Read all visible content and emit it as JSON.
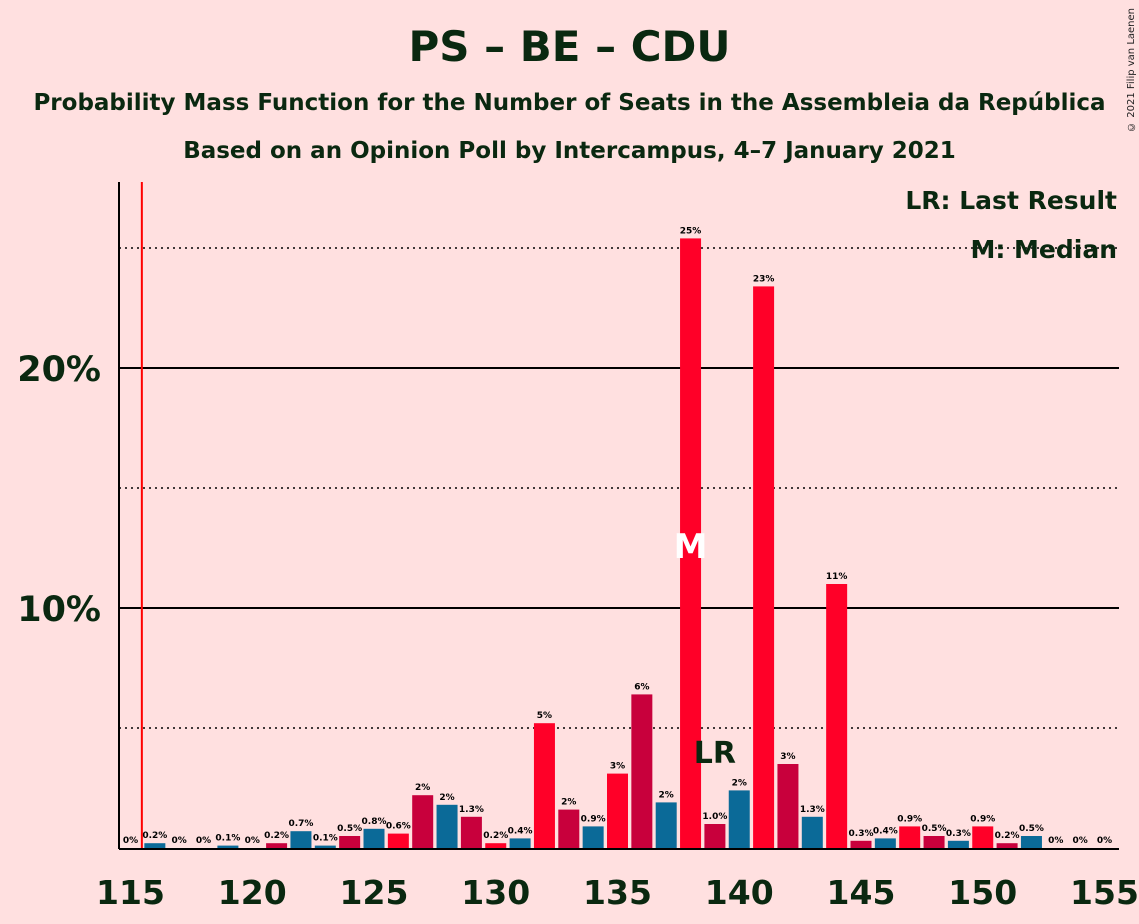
{
  "title": "PS – BE – CDU",
  "subtitle": "Probability Mass Function for the Number of Seats in the Assembleia da República",
  "subtitle2": "Based on an Opinion Poll by Intercampus, 4–7 January 2021",
  "copyright": "© 2021 Filip van Laenen",
  "legend": {
    "last_result": "LR: Last Result",
    "median": "M: Median"
  },
  "markers": {
    "median_label": "M",
    "median_seat": 138,
    "last_result_label": "LR",
    "last_result_seat": 139,
    "threshold_line_seat": 116
  },
  "colors": {
    "background": "#ffe0e0",
    "ps_red": "#ff0028",
    "crimson": "#c8003c",
    "blue": "#0b6a98",
    "threshold_line": "#ff0000",
    "text": "#0a2810"
  },
  "chart_data": {
    "type": "bar",
    "xlim": [
      115,
      155
    ],
    "ylim": [
      0,
      27.5
    ],
    "x_ticks": [
      "115",
      "120",
      "125",
      "130",
      "135",
      "140",
      "145",
      "150",
      "155"
    ],
    "y_ticks": [
      "10%",
      "20%"
    ],
    "major_gridlines": [
      10,
      20
    ],
    "minor_gridlines": [
      5,
      15,
      25
    ],
    "bars": [
      {
        "seats": 115,
        "value": 0.0,
        "label": "0%",
        "color": "#0b6a98"
      },
      {
        "seats": 116,
        "value": 0.2,
        "label": "0.2%",
        "color": "#0b6a98"
      },
      {
        "seats": 117,
        "value": 0.0,
        "label": "0%",
        "color": "#0b6a98"
      },
      {
        "seats": 118,
        "value": 0.0,
        "label": "0%",
        "color": "#0b6a98"
      },
      {
        "seats": 119,
        "value": 0.1,
        "label": "0.1%",
        "color": "#0b6a98"
      },
      {
        "seats": 120,
        "value": 0.0,
        "label": "0%",
        "color": "#0b6a98"
      },
      {
        "seats": 121,
        "value": 0.2,
        "label": "0.2%",
        "color": "#c8003c"
      },
      {
        "seats": 122,
        "value": 0.7,
        "label": "0.7%",
        "color": "#0b6a98"
      },
      {
        "seats": 123,
        "value": 0.1,
        "label": "0.1%",
        "color": "#0b6a98"
      },
      {
        "seats": 124,
        "value": 0.5,
        "label": "0.5%",
        "color": "#c8003c"
      },
      {
        "seats": 125,
        "value": 0.8,
        "label": "0.8%",
        "color": "#0b6a98"
      },
      {
        "seats": 126,
        "value": 0.6,
        "label": "0.6%",
        "color": "#ff0028"
      },
      {
        "seats": 127,
        "value": 2.2,
        "label": "2%",
        "color": "#c8003c"
      },
      {
        "seats": 128,
        "value": 1.8,
        "label": "2%",
        "color": "#0b6a98"
      },
      {
        "seats": 129,
        "value": 1.3,
        "label": "1.3%",
        "color": "#c8003c"
      },
      {
        "seats": 130,
        "value": 0.2,
        "label": "0.2%",
        "color": "#ff0028"
      },
      {
        "seats": 131,
        "value": 0.4,
        "label": "0.4%",
        "color": "#0b6a98"
      },
      {
        "seats": 132,
        "value": 5.2,
        "label": "5%",
        "color": "#ff0028"
      },
      {
        "seats": 133,
        "value": 1.6,
        "label": "2%",
        "color": "#c8003c"
      },
      {
        "seats": 134,
        "value": 0.9,
        "label": "0.9%",
        "color": "#0b6a98"
      },
      {
        "seats": 135,
        "value": 3.1,
        "label": "3%",
        "color": "#ff0028"
      },
      {
        "seats": 136,
        "value": 6.4,
        "label": "6%",
        "color": "#c8003c"
      },
      {
        "seats": 137,
        "value": 1.9,
        "label": "2%",
        "color": "#0b6a98"
      },
      {
        "seats": 138,
        "value": 25.4,
        "label": "25%",
        "color": "#ff0028"
      },
      {
        "seats": 139,
        "value": 1.0,
        "label": "1.0%",
        "color": "#c8003c"
      },
      {
        "seats": 140,
        "value": 2.4,
        "label": "2%",
        "color": "#0b6a98"
      },
      {
        "seats": 141,
        "value": 23.4,
        "label": "23%",
        "color": "#ff0028"
      },
      {
        "seats": 142,
        "value": 3.5,
        "label": "3%",
        "color": "#c8003c"
      },
      {
        "seats": 143,
        "value": 1.3,
        "label": "1.3%",
        "color": "#0b6a98"
      },
      {
        "seats": 144,
        "value": 11.0,
        "label": "11%",
        "color": "#ff0028"
      },
      {
        "seats": 145,
        "value": 0.3,
        "label": "0.3%",
        "color": "#c8003c"
      },
      {
        "seats": 146,
        "value": 0.4,
        "label": "0.4%",
        "color": "#0b6a98"
      },
      {
        "seats": 147,
        "value": 0.9,
        "label": "0.9%",
        "color": "#ff0028"
      },
      {
        "seats": 148,
        "value": 0.5,
        "label": "0.5%",
        "color": "#c8003c"
      },
      {
        "seats": 149,
        "value": 0.3,
        "label": "0.3%",
        "color": "#0b6a98"
      },
      {
        "seats": 150,
        "value": 0.9,
        "label": "0.9%",
        "color": "#ff0028"
      },
      {
        "seats": 151,
        "value": 0.2,
        "label": "0.2%",
        "color": "#c8003c"
      },
      {
        "seats": 152,
        "value": 0.5,
        "label": "0.5%",
        "color": "#0b6a98"
      },
      {
        "seats": 153,
        "value": 0.0,
        "label": "0%",
        "color": "#0b6a98"
      },
      {
        "seats": 154,
        "value": 0.0,
        "label": "0%",
        "color": "#0b6a98"
      },
      {
        "seats": 155,
        "value": 0.0,
        "label": "0%",
        "color": "#0b6a98"
      }
    ]
  }
}
